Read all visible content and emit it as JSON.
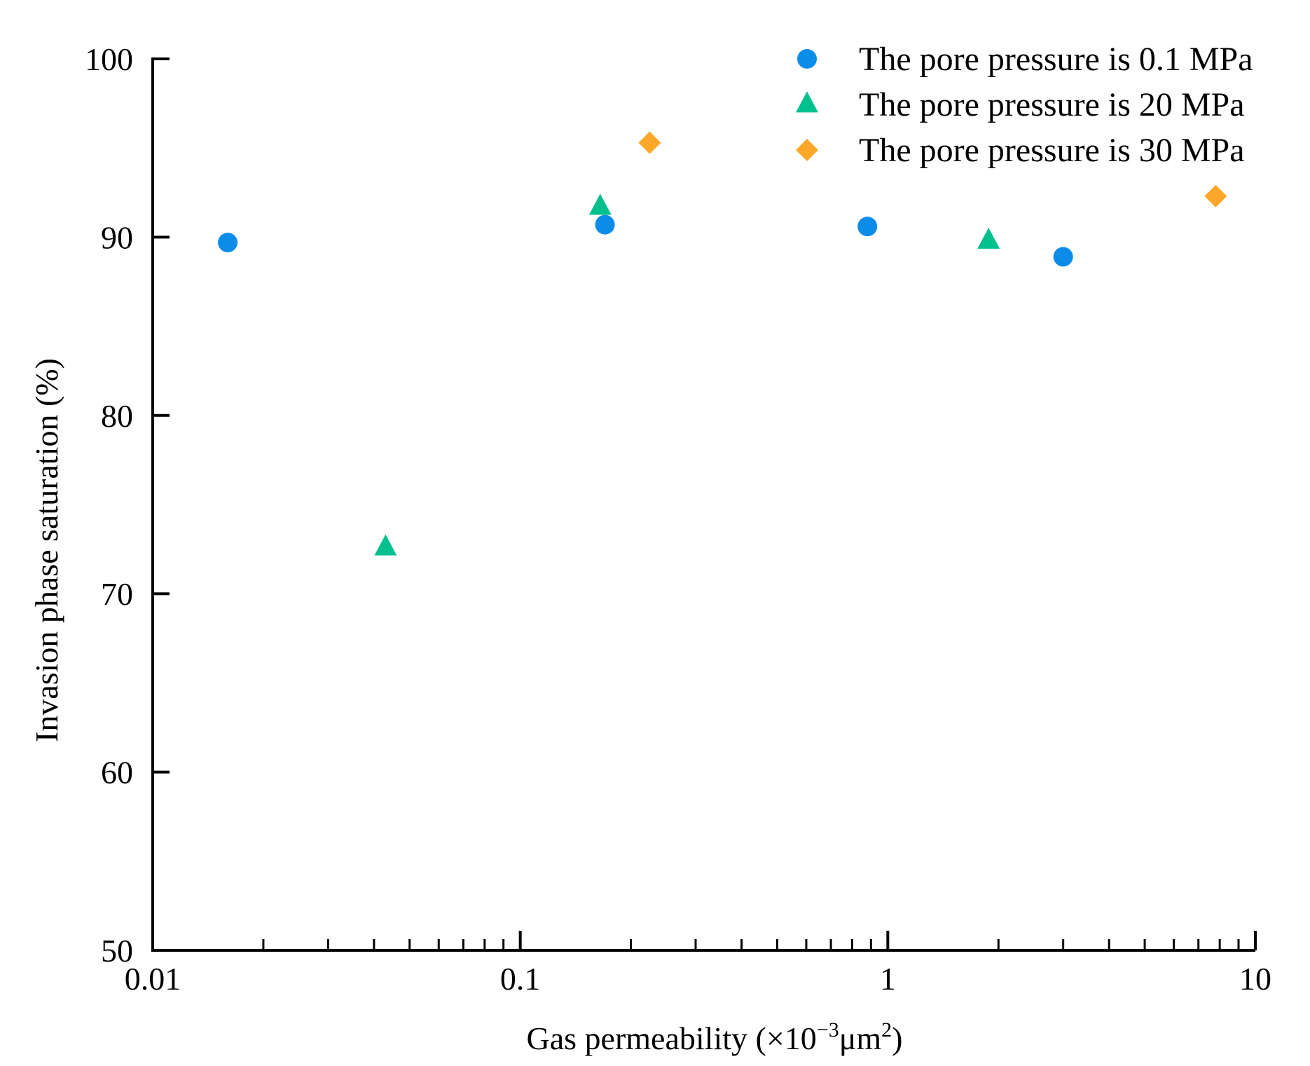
{
  "chart_data": {
    "type": "scatter",
    "title": "",
    "xlabel": "Gas permeability (×10",
    "xlabel_exp1": "−3",
    "xlabel_mid": "μm",
    "xlabel_exp2": "2",
    "xlabel_end": ")",
    "ylabel": "Invasion phase saturation (%)",
    "xscale": "log",
    "xlim": [
      0.01,
      10
    ],
    "ylim": [
      50,
      100
    ],
    "x_ticks": [
      {
        "value": 0.01,
        "label": "0.01"
      },
      {
        "value": 0.1,
        "label": "0.1"
      },
      {
        "value": 1,
        "label": "1"
      },
      {
        "value": 10,
        "label": "10"
      }
    ],
    "y_ticks": [
      {
        "value": 50,
        "label": "50"
      },
      {
        "value": 60,
        "label": "60"
      },
      {
        "value": 70,
        "label": "70"
      },
      {
        "value": 80,
        "label": "80"
      },
      {
        "value": 90,
        "label": "90"
      },
      {
        "value": 100,
        "label": "100"
      }
    ],
    "grid": false,
    "legend_position": "top-right",
    "series": [
      {
        "name": "The pore pressure is 0.1 MPa",
        "marker": "circle",
        "color": "#0c8ce9",
        "points": [
          {
            "x": 0.016,
            "y": 89.7
          },
          {
            "x": 0.17,
            "y": 90.7
          },
          {
            "x": 0.88,
            "y": 90.6
          },
          {
            "x": 3.0,
            "y": 88.9
          }
        ]
      },
      {
        "name": "The pore pressure is 20 MPa",
        "marker": "triangle",
        "color": "#00c18e",
        "points": [
          {
            "x": 0.043,
            "y": 72.6
          },
          {
            "x": 0.165,
            "y": 91.7
          },
          {
            "x": 1.88,
            "y": 89.8
          }
        ]
      },
      {
        "name": "The pore pressure is 30 MPa",
        "marker": "diamond",
        "color": "#ffa72a",
        "points": [
          {
            "x": 0.225,
            "y": 95.3
          },
          {
            "x": 7.8,
            "y": 92.3
          }
        ]
      }
    ]
  }
}
